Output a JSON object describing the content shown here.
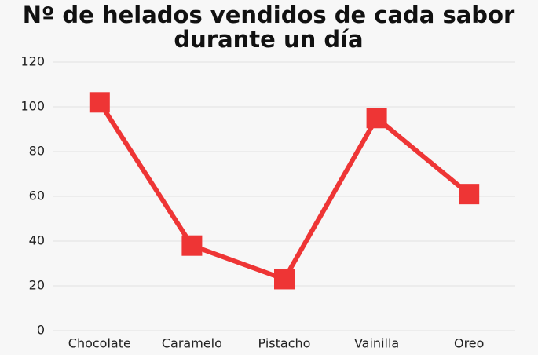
{
  "chart_data": {
    "type": "line",
    "title": "Nº de helados vendidos de cada sabor durante un día",
    "categories": [
      "Chocolate",
      "Caramelo",
      "Pistacho",
      "Vainilla",
      "Oreo"
    ],
    "values": [
      102,
      38,
      23,
      95,
      61
    ],
    "color": "#ee3535",
    "ylim": [
      0,
      120
    ],
    "yticks": [
      0,
      20,
      40,
      60,
      80,
      100,
      120
    ],
    "grid": true
  }
}
